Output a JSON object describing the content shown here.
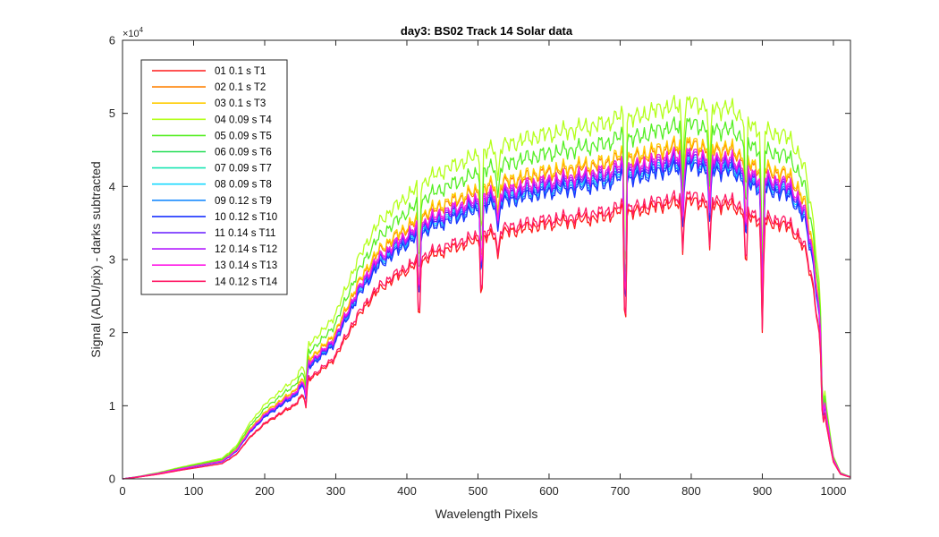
{
  "chart_data": {
    "type": "line",
    "title": "day3: BS02  Track 14 Solar data",
    "xlabel": "Wavelength Pixels",
    "ylabel": "Signal (ADU/pix) - darks subtracted",
    "y_exponent_prefix": "×10",
    "y_exponent_power": "4",
    "xlim": [
      0,
      1024
    ],
    "ylim": [
      0,
      6
    ],
    "x_ticks": [
      "0",
      "100",
      "200",
      "300",
      "400",
      "500",
      "600",
      "700",
      "800",
      "900",
      "1000"
    ],
    "y_ticks": [
      "0",
      "1",
      "2",
      "3",
      "4",
      "5",
      "6"
    ],
    "grid": false,
    "legend_position": "top-left",
    "x": [
      0,
      20,
      50,
      80,
      100,
      120,
      140,
      160,
      180,
      200,
      220,
      240,
      255,
      260,
      280,
      300,
      320,
      340,
      360,
      380,
      400,
      420,
      440,
      460,
      480,
      500,
      520,
      540,
      560,
      580,
      600,
      620,
      640,
      660,
      680,
      700,
      720,
      740,
      760,
      780,
      800,
      820,
      840,
      860,
      880,
      900,
      920,
      940,
      960,
      970,
      980,
      985,
      990,
      1000,
      1010,
      1024
    ],
    "base_profile": [
      0,
      0.02,
      0.06,
      0.11,
      0.14,
      0.17,
      0.2,
      0.32,
      0.55,
      0.72,
      0.84,
      0.95,
      1.1,
      1.3,
      1.42,
      1.6,
      1.95,
      2.25,
      2.48,
      2.62,
      2.74,
      2.86,
      2.95,
      3.02,
      3.08,
      3.14,
      3.2,
      3.24,
      3.28,
      3.32,
      3.35,
      3.37,
      3.4,
      3.42,
      3.45,
      3.52,
      3.5,
      3.55,
      3.6,
      3.62,
      3.65,
      3.62,
      3.6,
      3.58,
      3.45,
      3.38,
      3.35,
      3.3,
      3.0,
      2.6,
      1.9,
      1.1,
      0.7,
      0.22,
      0.06,
      0.02
    ],
    "dips": [
      {
        "x": 150,
        "depth": 0.12
      },
      {
        "x": 258,
        "depth": 0.25
      },
      {
        "x": 417,
        "depth": 0.35
      },
      {
        "x": 505,
        "depth": 0.32
      },
      {
        "x": 528,
        "depth": 0.12
      },
      {
        "x": 707,
        "depth": 0.55
      },
      {
        "x": 788,
        "depth": 0.18
      },
      {
        "x": 826,
        "depth": 0.2
      },
      {
        "x": 877,
        "depth": 0.28
      },
      {
        "x": 900,
        "depth": 0.45
      },
      {
        "x": 985,
        "depth": 0.4
      }
    ],
    "series": [
      {
        "name": "01 0.1 s T1",
        "color": "#ff1a1a",
        "scale": 1.04
      },
      {
        "name": "02 0.1 s T2",
        "color": "#ff8000",
        "scale": 1.25
      },
      {
        "name": "03 0.1 s T3",
        "color": "#ffcc00",
        "scale": 1.26
      },
      {
        "name": "04 0.09 s T4",
        "color": "#b3ff1a",
        "scale": 1.41
      },
      {
        "name": "05 0.09 s T5",
        "color": "#55ee22",
        "scale": 1.33
      },
      {
        "name": "06 0.09 s T6",
        "color": "#22dd55",
        "scale": 1.22
      },
      {
        "name": "07 0.09 s T7",
        "color": "#1ae6b3",
        "scale": 1.2
      },
      {
        "name": "08 0.09 s T8",
        "color": "#1ad9ff",
        "scale": 1.19
      },
      {
        "name": "09 0.12 s T9",
        "color": "#1a8cff",
        "scale": 1.18
      },
      {
        "name": "10 0.12 s T10",
        "color": "#1a33ff",
        "scale": 1.17
      },
      {
        "name": "11 0.14 s T11",
        "color": "#661aff",
        "scale": 1.2
      },
      {
        "name": "12 0.14 s T12",
        "color": "#b31aff",
        "scale": 1.21
      },
      {
        "name": "13 0.14 s T13",
        "color": "#ff1ae6",
        "scale": 1.22
      },
      {
        "name": "14 0.12 s T14",
        "color": "#ff1a66",
        "scale": 1.06
      }
    ]
  }
}
